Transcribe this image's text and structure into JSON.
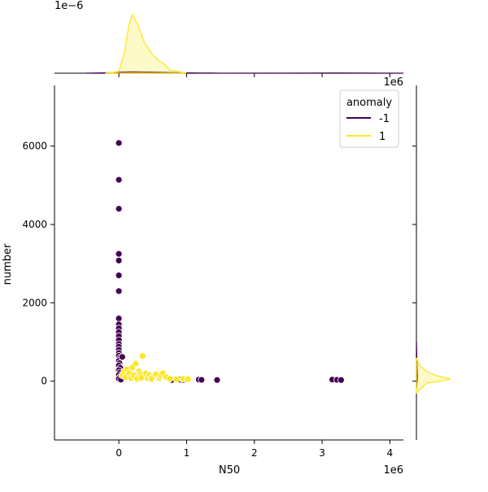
{
  "chart_data": {
    "type": "scatter",
    "subtype": "jointplot",
    "xlabel": "N50",
    "ylabel": "number",
    "x_scale_note": "1e6",
    "y_top_note": "1e6",
    "marginal_top_scale_note": "1e−6",
    "xlim": [
      -0.95,
      4.2
    ],
    "ylim": [
      -1500,
      7550
    ],
    "x_ticks": [
      {
        "value": 0,
        "label": "0"
      },
      {
        "value": 1,
        "label": "1"
      },
      {
        "value": 2,
        "label": "2"
      },
      {
        "value": 3,
        "label": "3"
      },
      {
        "value": 4,
        "label": "4"
      }
    ],
    "y_ticks": [
      {
        "value": 0,
        "label": "0"
      },
      {
        "value": 2000,
        "label": "2000"
      },
      {
        "value": 4000,
        "label": "4000"
      },
      {
        "value": 6000,
        "label": "6000"
      }
    ],
    "legend": {
      "title": "anomaly",
      "placement": "top-right",
      "entries": [
        {
          "label": "-1",
          "color": "#440154"
        },
        {
          "label": "1",
          "color": "#fde725"
        }
      ]
    },
    "series": [
      {
        "name": "-1",
        "color": "#440154",
        "points": [
          [
            0.0,
            6080
          ],
          [
            0.0,
            5140
          ],
          [
            0.0,
            4400
          ],
          [
            0.0,
            3250
          ],
          [
            0.0,
            3080
          ],
          [
            0.0,
            2700
          ],
          [
            0.0,
            2300
          ],
          [
            0.0,
            1600
          ],
          [
            0.0,
            1450
          ],
          [
            0.0,
            1350
          ],
          [
            0.0,
            1250
          ],
          [
            0.0,
            1150
          ],
          [
            0.0,
            1050
          ],
          [
            0.0,
            950
          ],
          [
            0.0,
            880
          ],
          [
            0.0,
            800
          ],
          [
            0.0,
            720
          ],
          [
            0.0,
            650
          ],
          [
            0.02,
            600
          ],
          [
            0.0,
            520
          ],
          [
            0.01,
            460
          ],
          [
            0.0,
            400
          ],
          [
            0.02,
            340
          ],
          [
            0.0,
            280
          ],
          [
            0.01,
            220
          ],
          [
            0.0,
            160
          ],
          [
            0.02,
            110
          ],
          [
            0.0,
            60
          ],
          [
            0.03,
            40
          ],
          [
            0.05,
            620
          ],
          [
            0.78,
            30
          ],
          [
            0.9,
            40
          ],
          [
            0.95,
            30
          ],
          [
            1.18,
            40
          ],
          [
            1.22,
            35
          ],
          [
            1.45,
            30
          ],
          [
            3.15,
            40
          ],
          [
            3.22,
            35
          ],
          [
            3.28,
            30
          ]
        ]
      },
      {
        "name": "1",
        "color": "#fde725",
        "points": [
          [
            0.05,
            150
          ],
          [
            0.08,
            250
          ],
          [
            0.1,
            100
          ],
          [
            0.12,
            300
          ],
          [
            0.15,
            200
          ],
          [
            0.18,
            80
          ],
          [
            0.2,
            350
          ],
          [
            0.22,
            150
          ],
          [
            0.25,
            450
          ],
          [
            0.28,
            100
          ],
          [
            0.3,
            250
          ],
          [
            0.32,
            180
          ],
          [
            0.35,
            640
          ],
          [
            0.38,
            120
          ],
          [
            0.4,
            200
          ],
          [
            0.42,
            80
          ],
          [
            0.45,
            150
          ],
          [
            0.5,
            100
          ],
          [
            0.55,
            180
          ],
          [
            0.6,
            80
          ],
          [
            0.62,
            150
          ],
          [
            0.65,
            200
          ],
          [
            0.7,
            100
          ],
          [
            0.75,
            60
          ],
          [
            0.85,
            50
          ],
          [
            0.95,
            60
          ],
          [
            1.02,
            50
          ],
          [
            0.27,
            60
          ],
          [
            0.33,
            90
          ],
          [
            0.48,
            60
          ]
        ]
      }
    ],
    "marginal_x": {
      "series": [
        {
          "name": "-1",
          "color": "#440154",
          "x": [
            -0.5,
            -0.2,
            0,
            0.2,
            0.5,
            1,
            1.5,
            3.2,
            4.2
          ],
          "density": [
            0,
            0.01,
            0.03,
            0.04,
            0.03,
            0.01,
            0,
            0.005,
            0
          ]
        },
        {
          "name": "1",
          "color": "#fde725",
          "x": [
            -0.2,
            0,
            0.08,
            0.15,
            0.2,
            0.28,
            0.38,
            0.5,
            0.6,
            0.65,
            0.75,
            1.0
          ],
          "density": [
            0,
            0.05,
            0.6,
            1.45,
            1.75,
            1.45,
            0.9,
            0.55,
            0.35,
            0.3,
            0.1,
            0
          ]
        }
      ]
    },
    "marginal_y": {
      "series": [
        {
          "name": "-1",
          "color": "#440154",
          "y": [
            -200,
            0,
            100,
            300,
            600,
            1000
          ],
          "density": [
            0,
            0.02,
            0.03,
            0.02,
            0.01,
            0
          ]
        },
        {
          "name": "1",
          "color": "#fde725",
          "y": [
            -300,
            -50,
            0,
            60,
            150,
            250,
            400,
            600
          ],
          "density": [
            0,
            0.3,
            0.7,
            1.0,
            0.55,
            0.3,
            0.1,
            0
          ]
        }
      ]
    }
  }
}
